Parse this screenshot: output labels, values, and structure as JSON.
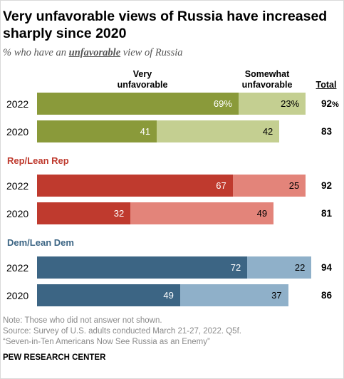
{
  "title": "Very unfavorable views of Russia have increased sharply since 2020",
  "subtitle": {
    "prefix": "% who have an",
    "emphasis": "unfavorable",
    "suffix": "view of Russia"
  },
  "columns": {
    "very": "Very unfavorable",
    "somewhat": "Somewhat unfavorable",
    "total": "Total"
  },
  "chart_data": {
    "type": "bar",
    "stacked": true,
    "orientation": "horizontal",
    "xlim": [
      0,
      100
    ],
    "groups": [
      {
        "label": "",
        "color_very": "#8a9a3a",
        "color_somewhat": "#c4cf91",
        "text_color_very": "#ffffff",
        "label_color": "#000000",
        "rows": [
          {
            "year": "2022",
            "very": 69,
            "somewhat": 23,
            "very_label": "69%",
            "somewhat_label": "23%",
            "total": "92",
            "total_suffix": "%"
          },
          {
            "year": "2020",
            "very": 41,
            "somewhat": 42,
            "very_label": "41",
            "somewhat_label": "42",
            "total": "83",
            "total_suffix": ""
          }
        ]
      },
      {
        "label": "Rep/Lean Rep",
        "color_very": "#bf3a2e",
        "color_somewhat": "#e3847a",
        "text_color_very": "#ffffff",
        "label_color": "#bf3a2e",
        "rows": [
          {
            "year": "2022",
            "very": 67,
            "somewhat": 25,
            "very_label": "67",
            "somewhat_label": "25",
            "total": "92",
            "total_suffix": ""
          },
          {
            "year": "2020",
            "very": 32,
            "somewhat": 49,
            "very_label": "32",
            "somewhat_label": "49",
            "total": "81",
            "total_suffix": ""
          }
        ]
      },
      {
        "label": "Dem/Lean Dem",
        "color_very": "#3c6584",
        "color_somewhat": "#8fb0c9",
        "text_color_very": "#ffffff",
        "label_color": "#3c6584",
        "rows": [
          {
            "year": "2022",
            "very": 72,
            "somewhat": 22,
            "very_label": "72",
            "somewhat_label": "22",
            "total": "94",
            "total_suffix": ""
          },
          {
            "year": "2020",
            "very": 49,
            "somewhat": 37,
            "very_label": "49",
            "somewhat_label": "37",
            "total": "86",
            "total_suffix": ""
          }
        ]
      }
    ]
  },
  "notes": {
    "note": "Note: Those who did not answer not shown.",
    "source": "Source: Survey of U.S. adults conducted March 21-27, 2022. Q5f.",
    "report": "“Seven-in-Ten Americans Now See Russia as an Enemy”",
    "org": "PEW RESEARCH CENTER"
  }
}
